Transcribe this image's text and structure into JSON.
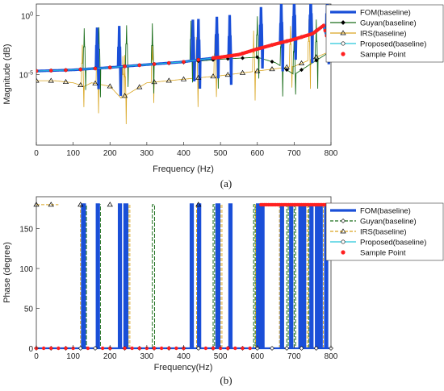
{
  "figure": {
    "caption_a": "(a)",
    "caption_b": "(b)"
  },
  "chart_data": [
    {
      "type": "line",
      "title": "",
      "xlabel": "Frequency (Hz)",
      "ylabel": "Magnitude (dB)",
      "xlim": [
        0,
        800
      ],
      "xticks": [
        0,
        100,
        200,
        300,
        400,
        500,
        600,
        700,
        800
      ],
      "yscale": "log",
      "ylim": [
        1e-11,
        10
      ],
      "yticks": [
        {
          "value": 1e-05,
          "label": "10^-5"
        },
        {
          "value": 1,
          "label": "10^0"
        }
      ],
      "grid": false,
      "legend": {
        "position": "top-right",
        "entries": [
          "FOM(baseline)",
          "Guyan(baseline)",
          "IRS(baseline)",
          "Proposed(baseline)",
          "Sample Point"
        ]
      },
      "resonances": [
        {
          "series": "FOM(baseline)",
          "freqs": [
            165,
            225,
            425,
            440,
            490,
            525,
            610,
            665,
            700,
            745,
            790
          ]
        },
        {
          "series": "Guyan(baseline)",
          "freqs": [
            130,
            170,
            245,
            315,
            420,
            490,
            600,
            665,
            700,
            760
          ]
        },
        {
          "series": "IRS(baseline)",
          "freqs": [
            125,
            165,
            235,
            240,
            315,
            435,
            485,
            590,
            690,
            740
          ]
        }
      ],
      "series": [
        {
          "name": "FOM(baseline)",
          "color": "#1a4fd8",
          "x": [
            0,
            100,
            200,
            300,
            400,
            450,
            500,
            550,
            600,
            650,
            700,
            750,
            780,
            800
          ],
          "y": [
            2e-05,
            2.5e-05,
            4e-05,
            7e-05,
            0.00012,
            0.0002,
            0.0003,
            0.0005,
            0.0015,
            0.004,
            0.01,
            0.03,
            0.15,
            0.001
          ]
        },
        {
          "name": "Guyan(baseline)",
          "color": "#1b6e1b",
          "x": [
            0,
            100,
            200,
            300,
            400,
            500,
            600,
            650,
            700,
            750,
            800
          ],
          "y": [
            2e-05,
            2.5e-05,
            4e-05,
            7e-05,
            0.00011,
            0.0002,
            0.0003,
            0.0001,
            1e-05,
            0.0001,
            0.001
          ]
        },
        {
          "name": "IRS(baseline)",
          "color": "#d9a520",
          "x": [
            0,
            50,
            100,
            130,
            150,
            200,
            230,
            300,
            400,
            500,
            600,
            700,
            800
          ],
          "y": [
            3e-06,
            3e-06,
            2e-06,
            1e-06,
            2e-06,
            1e-06,
            1e-07,
            2e-06,
            4e-06,
            8e-06,
            2e-05,
            5e-05,
            0.001
          ]
        },
        {
          "name": "Proposed(baseline)",
          "color": "#26c6da",
          "x": [
            0,
            100,
            200,
            300,
            400,
            450,
            500,
            550,
            600,
            650,
            700,
            750,
            780,
            800
          ],
          "y": [
            2e-05,
            2.5e-05,
            4e-05,
            7e-05,
            0.00012,
            0.0002,
            0.0003,
            0.0005,
            0.0015,
            0.004,
            0.01,
            0.03,
            0.15,
            0.001
          ]
        },
        {
          "name": "Sample Point",
          "color": "#ff2020"
        }
      ]
    },
    {
      "type": "line",
      "title": "",
      "xlabel": "Frequency(Hz)",
      "ylabel": "Phase (degree)",
      "xlim": [
        0,
        800
      ],
      "xticks": [
        0,
        100,
        200,
        300,
        400,
        500,
        600,
        700,
        800
      ],
      "ylim": [
        0,
        190
      ],
      "yticks": [
        0,
        50,
        100,
        150
      ],
      "grid": false,
      "legend": {
        "position": "top-right",
        "entries": [
          "FOM(baseline)",
          "Guyan(baseline)",
          "IRS(baseline)",
          "Proposed(baseline)",
          "Sample Point"
        ]
      },
      "phase_jumps": [
        {
          "series": "FOM(baseline)",
          "freqs": [
            125,
            165,
            225,
            240,
            420,
            440,
            490,
            525,
            600,
            610,
            665,
            690,
            715,
            725,
            745,
            760,
            770,
            785
          ]
        },
        {
          "series": "Guyan(baseline)",
          "freqs": [
            130,
            170,
            245,
            315,
            480,
            590,
            605,
            680,
            700,
            740
          ]
        },
        {
          "series": "IRS(baseline)",
          "freqs": [
            120,
            165,
            250,
            435,
            500,
            595,
            660,
            735,
            775
          ]
        }
      ],
      "series": [
        {
          "name": "FOM(baseline)",
          "color": "#1a4fd8"
        },
        {
          "name": "Guyan(baseline)",
          "color": "#1b6e1b"
        },
        {
          "name": "IRS(baseline)",
          "color": "#d9a520"
        },
        {
          "name": "Proposed(baseline)",
          "color": "#26c6da"
        },
        {
          "name": "Sample Point",
          "color": "#ff2020"
        }
      ]
    }
  ]
}
